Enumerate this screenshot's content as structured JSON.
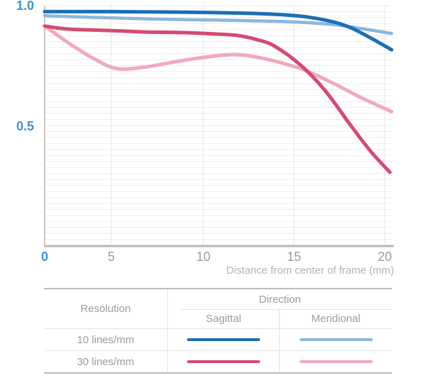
{
  "chart_data": {
    "type": "line",
    "title": "",
    "xlabel": "Distance from center of frame (mm)",
    "ylabel": "",
    "xlim": [
      0,
      20.4
    ],
    "ylim": [
      0,
      1.0
    ],
    "grid": "fine horizontal lines every 0.025, vertical lines every 5 mm",
    "legend_position": "table below chart",
    "x_tick_labels": [
      "0",
      "5",
      "10",
      "15",
      "20"
    ],
    "y_tick_labels": [
      "1.0",
      "0.5"
    ],
    "series": [
      {
        "name": "10 lines/mm Sagittal",
        "color": "#1b6fb5",
        "x": [
          0,
          2,
          4,
          6,
          8,
          10,
          12,
          14,
          15.5,
          17,
          18,
          19,
          20.4
        ],
        "y": [
          0.975,
          0.975,
          0.975,
          0.974,
          0.973,
          0.971,
          0.968,
          0.962,
          0.952,
          0.932,
          0.908,
          0.872,
          0.816
        ]
      },
      {
        "name": "10 lines/mm Meridional",
        "color": "#8ab7dc",
        "x": [
          0,
          2,
          4,
          6,
          8,
          10,
          12,
          14,
          15.5,
          17,
          18.5,
          20.4
        ],
        "y": [
          0.958,
          0.953,
          0.949,
          0.945,
          0.942,
          0.94,
          0.937,
          0.934,
          0.929,
          0.921,
          0.906,
          0.884
        ]
      },
      {
        "name": "30 lines/mm Sagittal",
        "color": "#d54a70",
        "x": [
          0,
          1,
          2,
          4,
          6,
          8,
          10,
          11.3,
          12.5,
          13.5,
          15,
          16.5,
          18,
          19.2,
          20.3
        ],
        "y": [
          0.915,
          0.905,
          0.9,
          0.896,
          0.89,
          0.888,
          0.882,
          0.876,
          0.858,
          0.832,
          0.755,
          0.645,
          0.5,
          0.39,
          0.305
        ]
      },
      {
        "name": "30 lines/mm Meridional",
        "color": "#f0a9bd",
        "x": [
          0,
          1.5,
          3,
          4.3,
          6,
          8,
          10,
          11.2,
          12.5,
          14,
          15.4,
          17,
          18.5,
          20.4
        ],
        "y": [
          0.915,
          0.84,
          0.775,
          0.737,
          0.745,
          0.77,
          0.79,
          0.796,
          0.785,
          0.76,
          0.728,
          0.675,
          0.62,
          0.558
        ]
      }
    ],
    "colors": {
      "axis_label_blue": "#4191d6",
      "tick_label_gray": "#9b9b9b",
      "axis_title_gray": "#b3b3b3"
    }
  },
  "legend_table": {
    "resolution_header": "Resolution",
    "direction_header": "Direction",
    "columns": [
      "Sagittal",
      "Meridional"
    ],
    "rows": [
      {
        "label": "10 lines/mm",
        "sagittal_color": "#1b6fb5",
        "meridional_color": "#8ab7dc"
      },
      {
        "label": "30 lines/mm",
        "sagittal_color": "#d54a70",
        "meridional_color": "#f0a9bd"
      }
    ]
  }
}
